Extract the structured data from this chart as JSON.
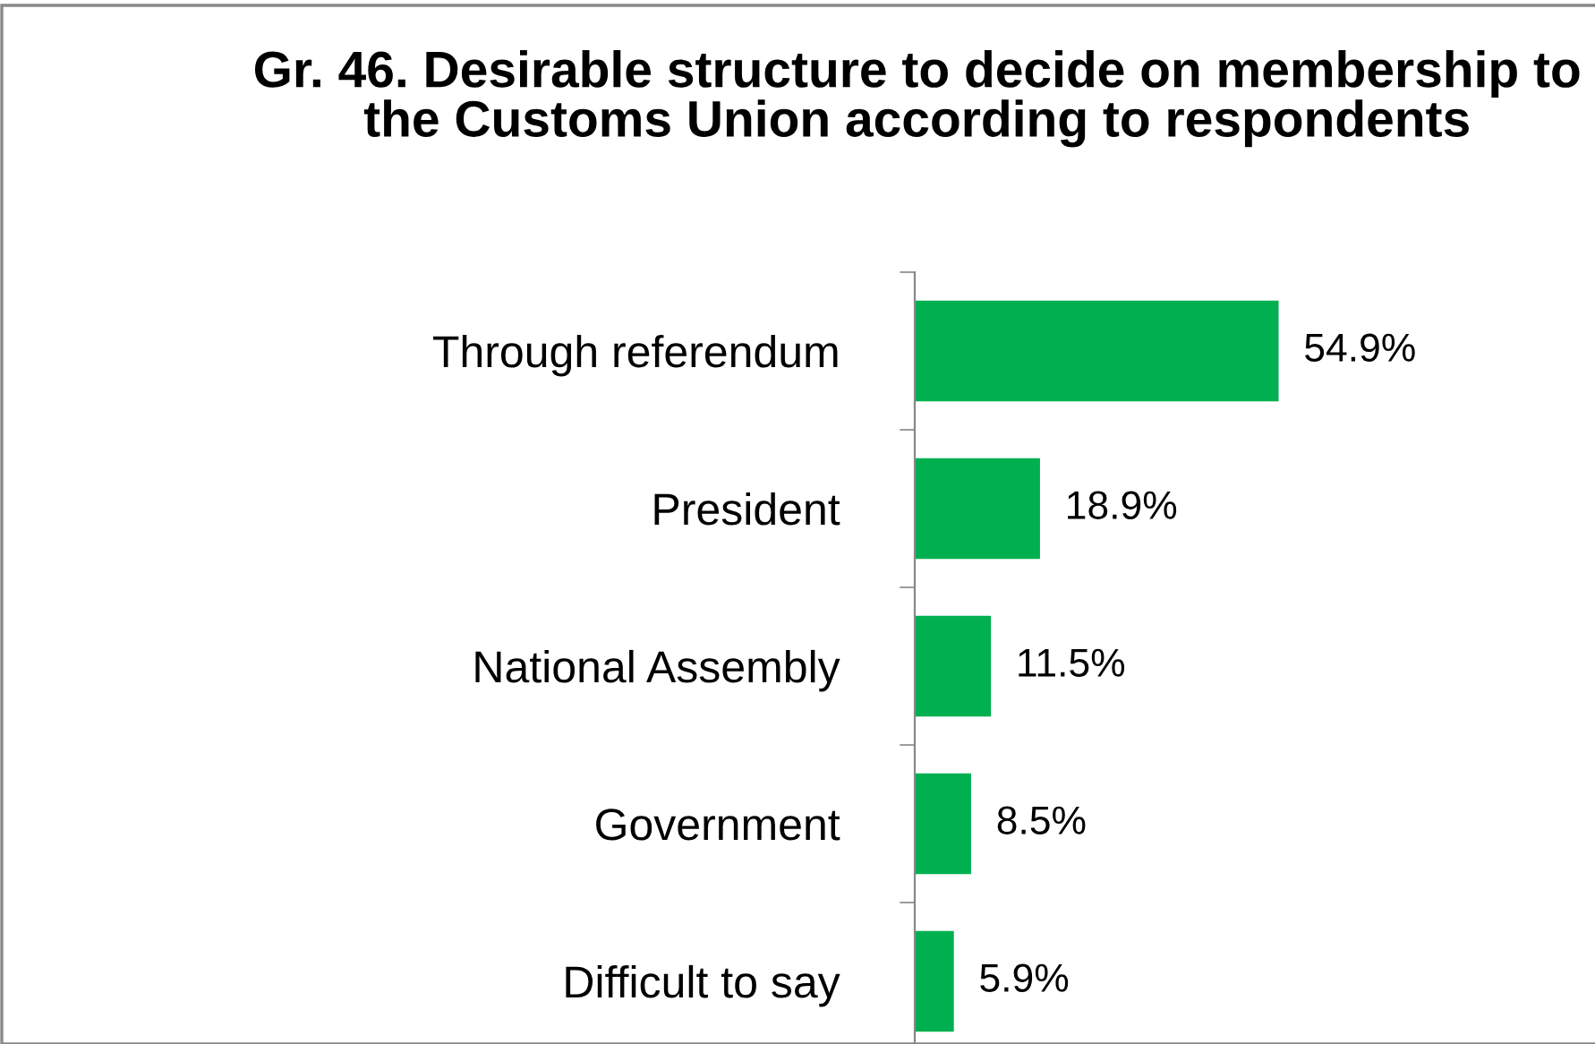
{
  "chart_data": {
    "type": "bar",
    "orientation": "horizontal",
    "title": "Gr. 46. Desirable structure to decide on membership to the Customs Union according to respondents",
    "categories": [
      "Through referendum",
      "President",
      "National Assembly",
      "Government",
      "Difficult to say"
    ],
    "values": [
      54.9,
      18.9,
      11.5,
      8.5,
      5.9
    ],
    "value_labels": [
      "54.9%",
      "18.9%",
      "11.5%",
      "8.5%",
      "5.9%"
    ],
    "color": "#00b050",
    "grid": false,
    "legend": false,
    "tick_labels": "y"
  }
}
